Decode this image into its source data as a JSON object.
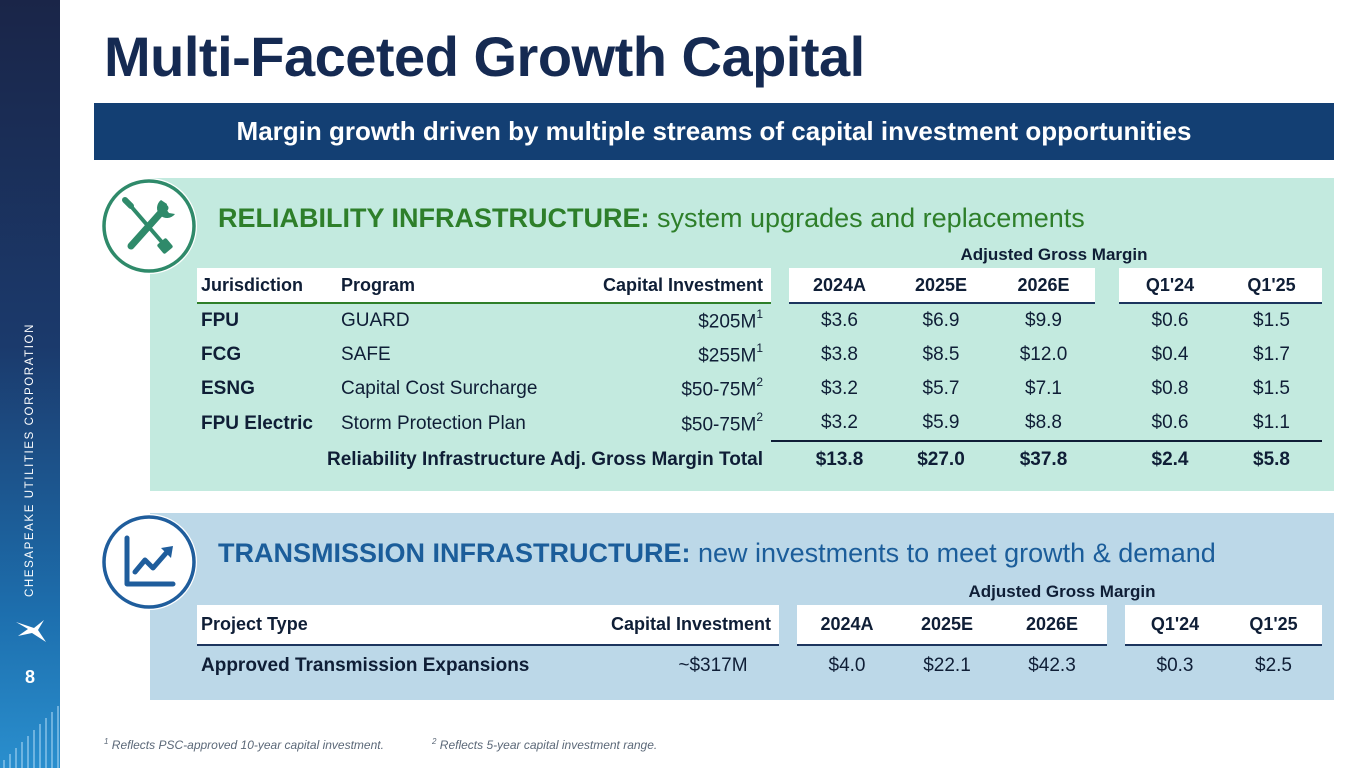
{
  "page": {
    "title": "Multi-Faceted Growth Capital",
    "banner": "Margin growth driven by multiple streams of capital investment opportunities",
    "page_number": "8",
    "company_vertical": "CHESAPEAKE UTILITIES CORPORATION"
  },
  "reliability": {
    "heading_strong": "RELIABILITY INFRASTRUCTURE:",
    "heading_rest": "system upgrades and replacements",
    "agm_label": "Adjusted Gross Margin",
    "headers": {
      "jurisdiction": "Jurisdiction",
      "program": "Program",
      "capital": "Capital Investment",
      "y2024": "2024A",
      "y2025": "2025E",
      "y2026": "2026E",
      "q124": "Q1'24",
      "q125": "Q1'25"
    },
    "rows": [
      {
        "jurisdiction": "FPU",
        "program": "GUARD",
        "capital": "$205M",
        "sup": "1",
        "y2024": "$3.6",
        "y2025": "$6.9",
        "y2026": "$9.9",
        "q124": "$0.6",
        "q125": "$1.5"
      },
      {
        "jurisdiction": "FCG",
        "program": "SAFE",
        "capital": "$255M",
        "sup": "1",
        "y2024": "$3.8",
        "y2025": "$8.5",
        "y2026": "$12.0",
        "q124": "$0.4",
        "q125": "$1.7"
      },
      {
        "jurisdiction": "ESNG",
        "program": "Capital Cost Surcharge",
        "capital": "$50-75M",
        "sup": "2",
        "y2024": "$3.2",
        "y2025": "$5.7",
        "y2026": "$7.1",
        "q124": "$0.8",
        "q125": "$1.5"
      },
      {
        "jurisdiction": "FPU Electric",
        "program": "Storm Protection Plan",
        "capital": "$50-75M",
        "sup": "2",
        "y2024": "$3.2",
        "y2025": "$5.9",
        "y2026": "$8.8",
        "q124": "$0.6",
        "q125": "$1.1"
      }
    ],
    "total": {
      "label": "Reliability Infrastructure Adj. Gross Margin Total",
      "y2024": "$13.8",
      "y2025": "$27.0",
      "y2026": "$37.8",
      "q124": "$2.4",
      "q125": "$5.8"
    }
  },
  "transmission": {
    "heading_strong": "TRANSMISSION INFRASTRUCTURE:",
    "heading_rest": "new investments to meet growth & demand",
    "agm_label": "Adjusted Gross Margin",
    "headers": {
      "project": "Project Type",
      "capital": "Capital Investment",
      "y2024": "2024A",
      "y2025": "2025E",
      "y2026": "2026E",
      "q124": "Q1'24",
      "q125": "Q1'25"
    },
    "rows": [
      {
        "project": "Approved Transmission Expansions",
        "capital": "~$317M",
        "y2024": "$4.0",
        "y2025": "$22.1",
        "y2026": "$42.3",
        "q124": "$0.3",
        "q125": "$2.5"
      }
    ]
  },
  "footnotes": [
    {
      "num": "1",
      "text": "Reflects PSC-approved 10-year capital investment."
    },
    {
      "num": "2",
      "text": "Reflects 5-year capital investment range."
    }
  ],
  "colors": {
    "title_navy": "#152a52",
    "banner_navy": "#133f73",
    "reliability_green": "#2e7f2a",
    "reliability_panel": "#c3eadf",
    "transmission_blue": "#1b5d9a",
    "transmission_panel": "#bcd8e8"
  }
}
